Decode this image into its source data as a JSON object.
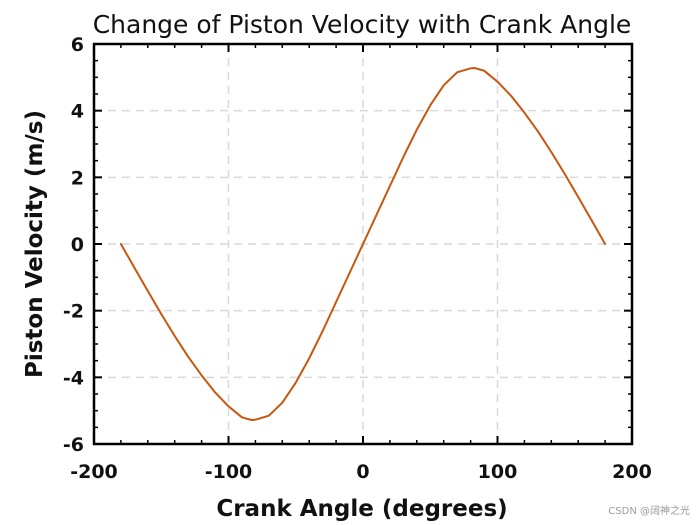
{
  "chart_data": {
    "type": "line",
    "title": "Change of Piston Velocity with Crank Angle",
    "xlabel": "Crank Angle (degrees)",
    "ylabel": "Piston Velocity (m/s)",
    "xlim": [
      -200,
      200
    ],
    "ylim": [
      -6,
      6
    ],
    "xticks": [
      -200,
      -100,
      0,
      100,
      200
    ],
    "yticks": [
      -6,
      -4,
      -2,
      0,
      2,
      4,
      6
    ],
    "grid": true,
    "series": [
      {
        "name": "Piston Velocity",
        "color": "#c8560f",
        "x": [
          -180,
          -170,
          -160,
          -150,
          -140,
          -130,
          -120,
          -110,
          -100,
          -90,
          -83,
          -80,
          -70,
          -60,
          -50,
          -40,
          -30,
          -20,
          -10,
          0,
          10,
          20,
          30,
          40,
          50,
          60,
          70,
          80,
          83,
          90,
          100,
          110,
          120,
          130,
          140,
          150,
          160,
          170,
          180
        ],
        "y": [
          0,
          -0.71,
          -1.41,
          -2.1,
          -2.76,
          -3.38,
          -3.94,
          -4.45,
          -4.87,
          -5.2,
          -5.28,
          -5.27,
          -5.15,
          -4.76,
          -4.16,
          -3.43,
          -2.61,
          -1.74,
          -0.87,
          0,
          0.87,
          1.74,
          2.61,
          3.43,
          4.16,
          4.76,
          5.15,
          5.27,
          5.28,
          5.2,
          4.87,
          4.45,
          3.94,
          3.38,
          2.76,
          2.1,
          1.41,
          0.71,
          0
        ]
      }
    ]
  },
  "watermark": "CSDN @阔神之光",
  "colors": {
    "line": "#c8560f",
    "grid": "#d9d9d9",
    "axis": "#000000"
  }
}
